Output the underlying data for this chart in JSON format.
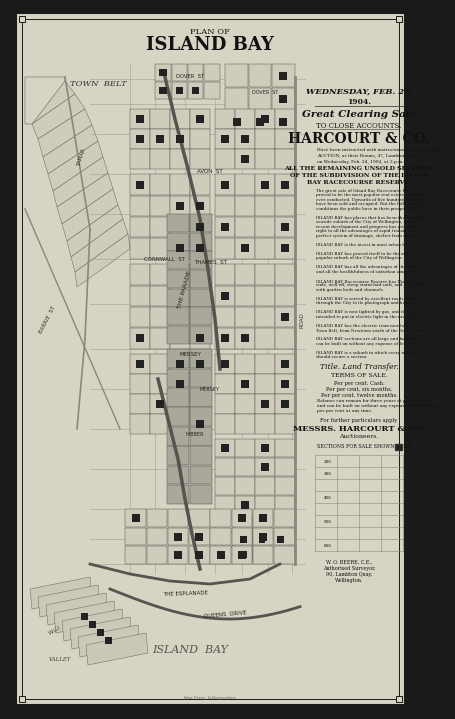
{
  "title_line1": "PLAN OF",
  "title_line2": "ISLAND BAY",
  "bg_color": "#ccc8b8",
  "border_color": "#1a1a1a",
  "text_color": "#111111",
  "sale_date": "WEDNESDAY, FEB. 24,",
  "sale_year": "1904.",
  "sale_desc": "Great Clearing Sale",
  "sale_sub": "TO CLOSE ACCOUNTS.",
  "auctioneer": "HARCOURT & CO.",
  "title_text": "Title. Land Transfer.",
  "terms_title": "TERMS OF SALE.",
  "terms1": "Per per cent. Cash.",
  "terms2": "Per per cent, six months.",
  "terms3": "Per per cent, twelve months.",
  "terms4": "Balance can remain for three years at per per cent",
  "terms4b": "and can be built on without any expense of foundation.",
  "terms4c": "per per cent at any time.",
  "further_info": "For further particulars apply",
  "firm_name": "MESSRS. HARCOURT & CO.",
  "firm_role": "Auctioneers.",
  "surveyor": "W. O. BEERE, C.E.,",
  "surveyor_title": "Authorised Surveyor,",
  "surveyor_addr": "90, Lambton Quay,",
  "surveyor_city": "Wellington.",
  "legend_text": "SECTIONS FOR SALE SHOWN THUS",
  "page_bg": "#1a1a1a",
  "cream_bg": "#d8d4c4",
  "map_bg": "#c8c4b4",
  "sold_color": "#222222",
  "grid_color": "#888880",
  "gray_block": "#aaa89a"
}
